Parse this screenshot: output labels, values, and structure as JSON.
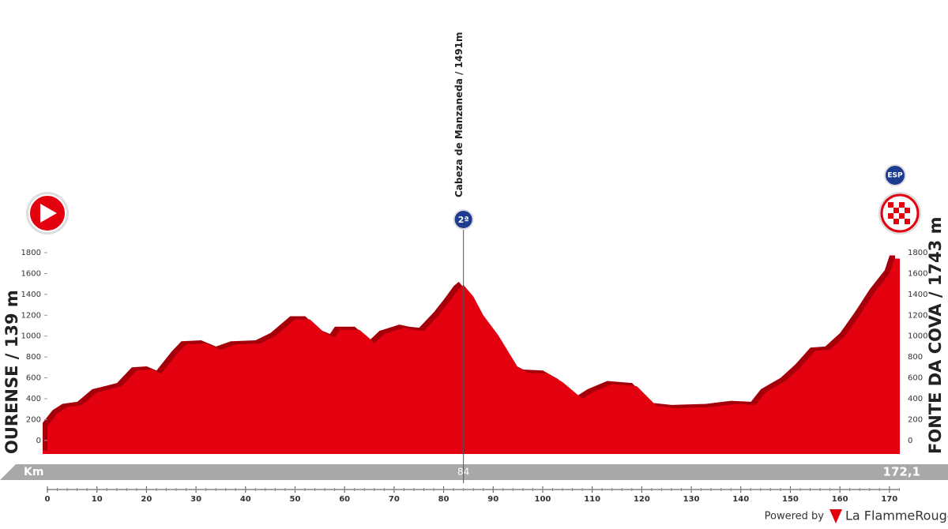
{
  "chart_data": {
    "type": "profile",
    "start": "OURENSE / 139 m",
    "finish": "FONTE DA COVA / 1743 m",
    "climb": {
      "name": "Cabeza de Manzaneda / 1491m",
      "km": 84,
      "category": "2ª"
    },
    "finish_icon_label": "ESP",
    "axis_label": "Km",
    "finish_km": {
      "value": 172.1,
      "label": "172,1"
    },
    "footer": {
      "powered": "Powered by",
      "brand": "La FlammeRouge"
    },
    "color": "#e3000f",
    "shadow_color": "#a5000a",
    "x": [
      0,
      2,
      4,
      7,
      10,
      15,
      18,
      21,
      23,
      26,
      28,
      32,
      35,
      38,
      43,
      46,
      50,
      53,
      56,
      58,
      59,
      63,
      65,
      66,
      68,
      70,
      72,
      74,
      76,
      79,
      81,
      83,
      84,
      86,
      88,
      91,
      95,
      97,
      101,
      104,
      108,
      110,
      114,
      119,
      123,
      127,
      134,
      139,
      143,
      145,
      149,
      152,
      155,
      158,
      161,
      164,
      167,
      170,
      171,
      172.1
    ],
    "values": [
      139,
      260,
      320,
      340,
      460,
      520,
      670,
      680,
      640,
      820,
      920,
      930,
      870,
      920,
      930,
      1000,
      1160,
      1160,
      1030,
      990,
      1060,
      1060,
      980,
      930,
      1020,
      1050,
      1080,
      1060,
      1050,
      1200,
      1320,
      1450,
      1491,
      1380,
      1200,
      1010,
      700,
      650,
      640,
      560,
      400,
      460,
      540,
      520,
      330,
      310,
      320,
      350,
      340,
      460,
      570,
      700,
      860,
      870,
      1000,
      1200,
      1420,
      1600,
      1743,
      1743
    ],
    "xlim": [
      0,
      172.1
    ],
    "ylim": [
      -130,
      1800
    ],
    "xticks": [
      0,
      10,
      20,
      30,
      40,
      50,
      60,
      70,
      80,
      90,
      100,
      110,
      120,
      130,
      140,
      150,
      160,
      170
    ],
    "yticks": [
      0,
      200,
      400,
      600,
      800,
      1000,
      1200,
      1400,
      1600,
      1800
    ]
  }
}
